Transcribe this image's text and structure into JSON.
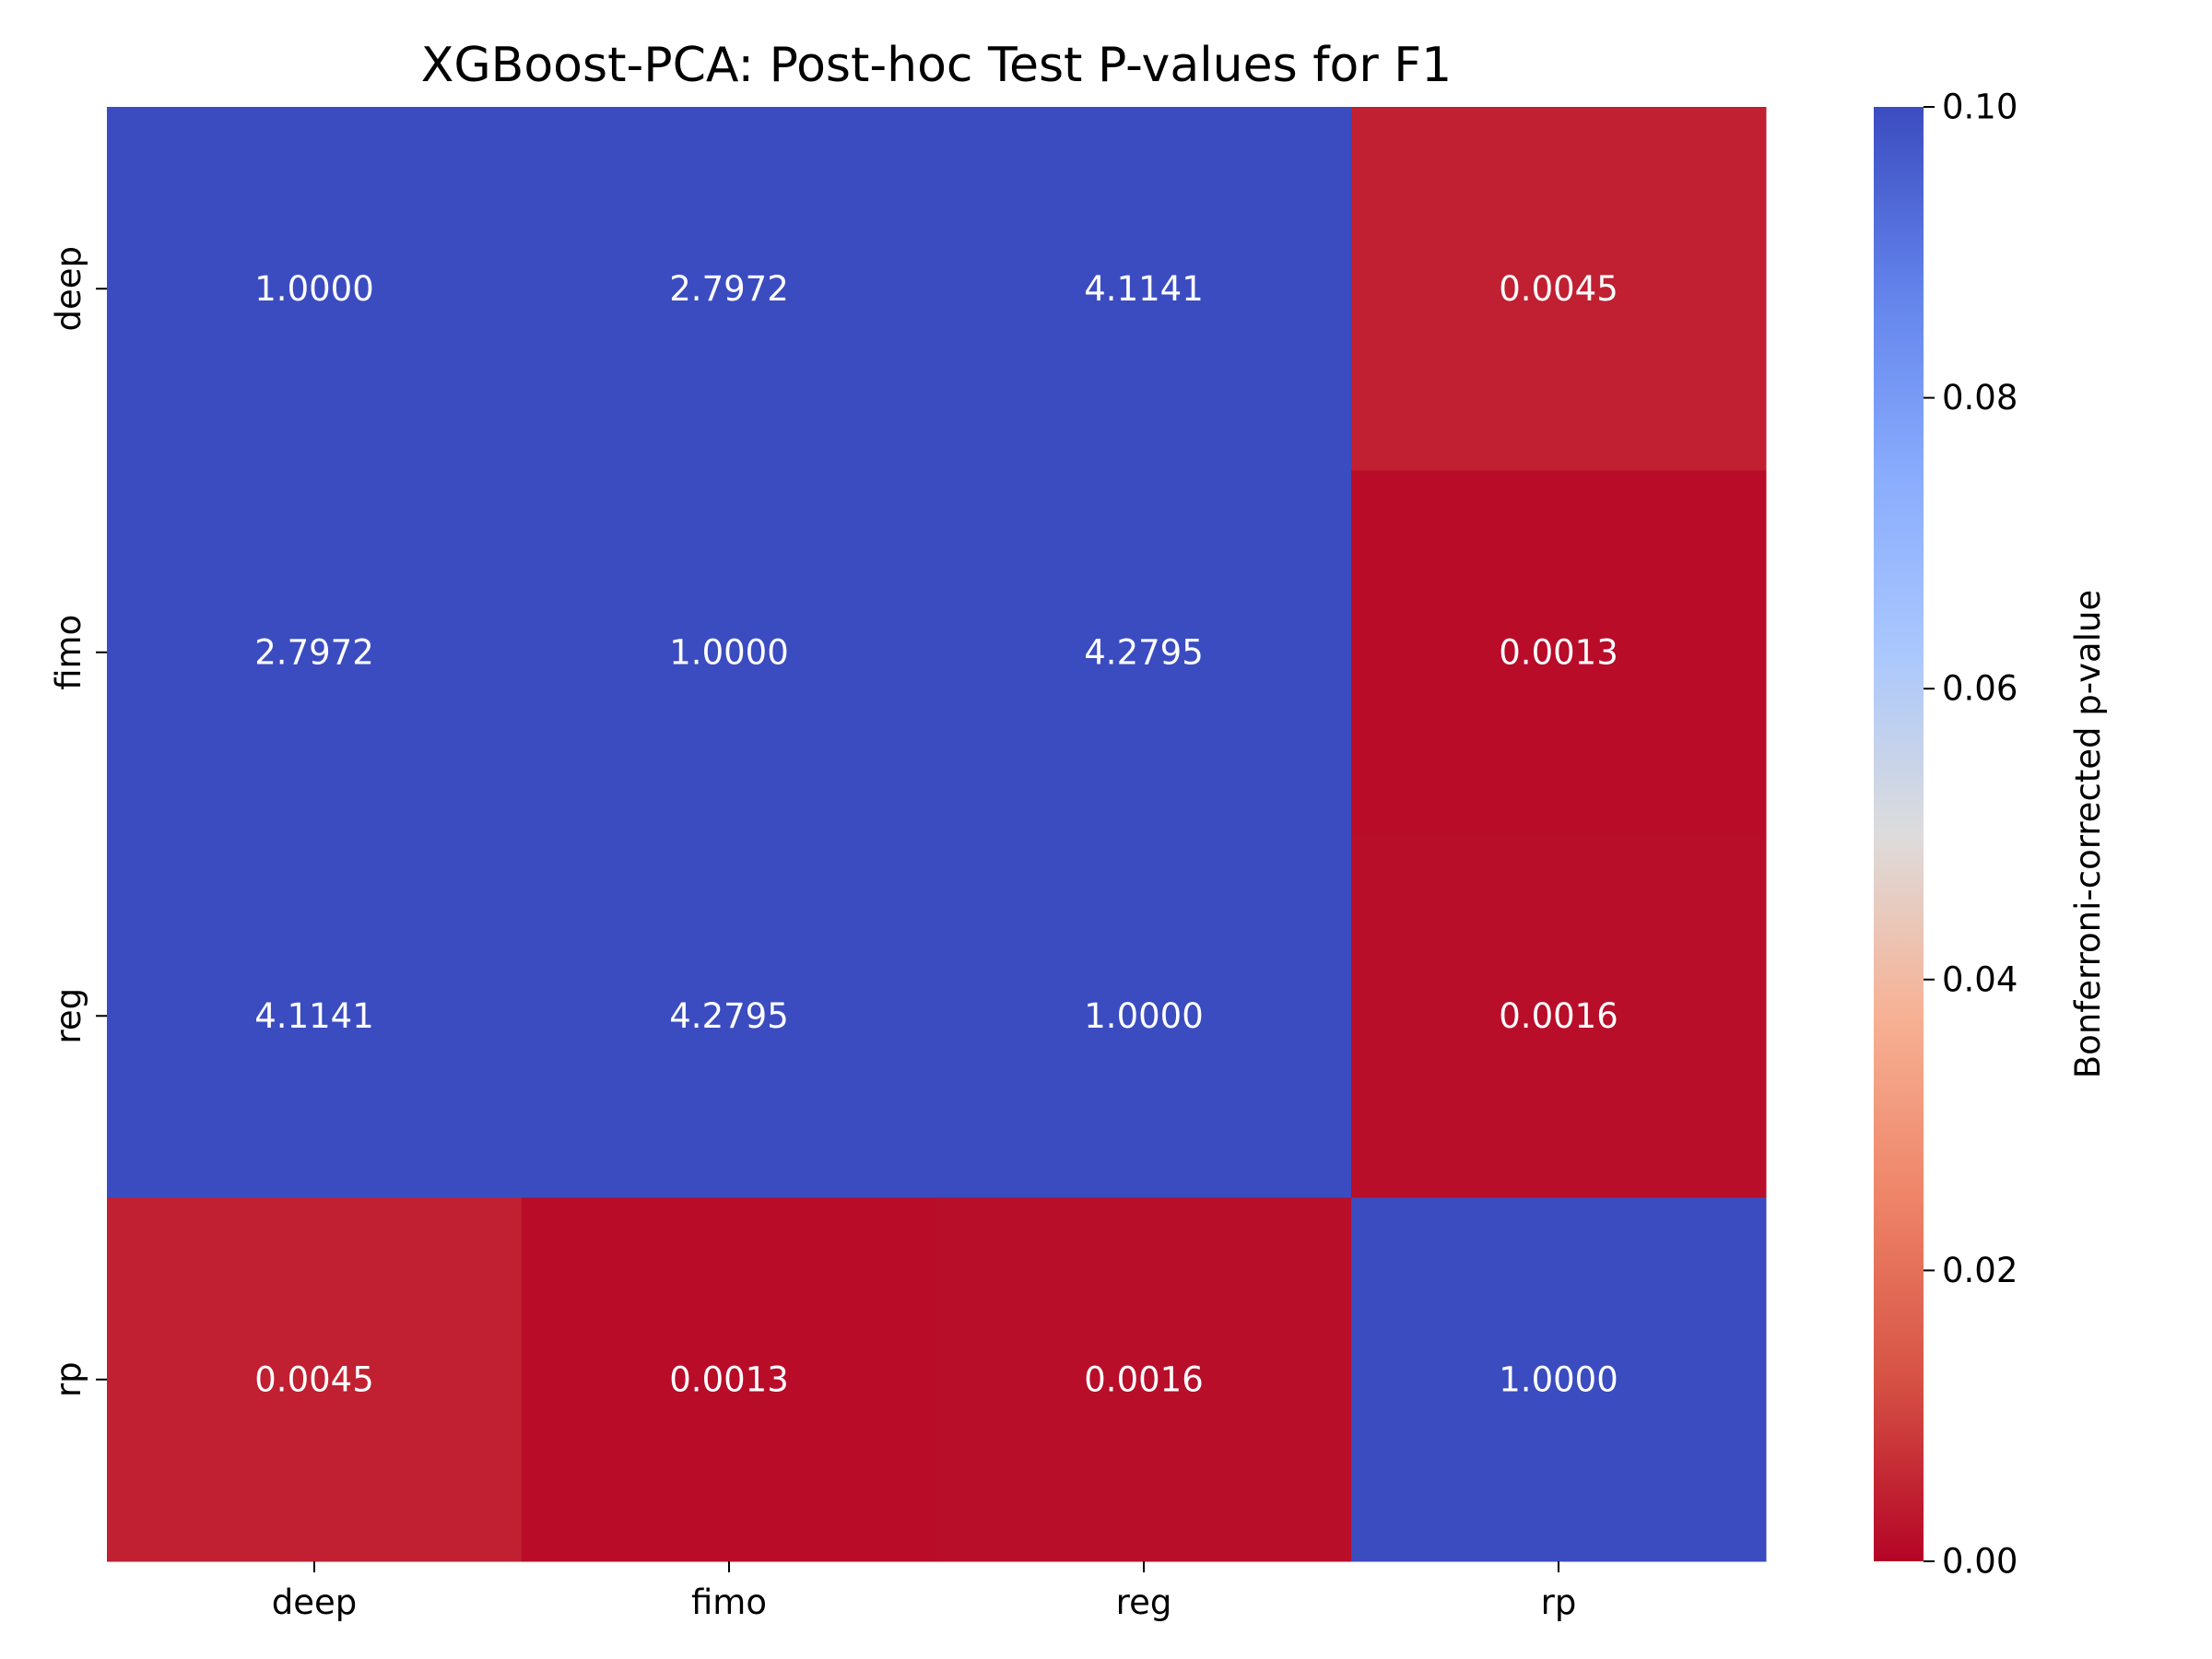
{
  "chart_data": {
    "type": "heatmap",
    "title": "XGBoost-PCA: Post-hoc Test P-values for F1",
    "xlabel": "",
    "ylabel": "",
    "x_categories": [
      "deep",
      "fimo",
      "reg",
      "rp"
    ],
    "y_categories": [
      "deep",
      "fimo",
      "reg",
      "rp"
    ],
    "values": [
      [
        1.0,
        2.7972,
        4.1141,
        0.0045
      ],
      [
        2.7972,
        1.0,
        4.2795,
        0.0013
      ],
      [
        4.1141,
        4.2795,
        1.0,
        0.0016
      ],
      [
        0.0045,
        0.0013,
        0.0016,
        1.0
      ]
    ],
    "value_labels": [
      [
        "1.0000",
        "2.7972",
        "4.1141",
        "0.0045"
      ],
      [
        "2.7972",
        "1.0000",
        "4.2795",
        "0.0013"
      ],
      [
        "4.1141",
        "4.2795",
        "1.0000",
        "0.0016"
      ],
      [
        "0.0045",
        "0.0013",
        "0.0016",
        "1.0000"
      ]
    ],
    "colormap": "coolwarm_r",
    "vmin": 0.0,
    "vmax": 0.1,
    "colorbar": {
      "label": "Bonferroni-corrected p-value",
      "ticks": [
        0.0,
        0.02,
        0.04,
        0.06,
        0.08,
        0.1
      ],
      "tick_labels": [
        "0.00",
        "0.02",
        "0.04",
        "0.06",
        "0.08",
        "0.10"
      ]
    },
    "colormap_stops": [
      {
        "t": 0.0,
        "color": "#b40426"
      },
      {
        "t": 0.125,
        "color": "#d65244"
      },
      {
        "t": 0.25,
        "color": "#ee8468"
      },
      {
        "t": 0.375,
        "color": "#f7b194"
      },
      {
        "t": 0.5,
        "color": "#dddcdc"
      },
      {
        "t": 0.625,
        "color": "#aac7fd"
      },
      {
        "t": 0.75,
        "color": "#88abfd"
      },
      {
        "t": 0.875,
        "color": "#6282ea"
      },
      {
        "t": 1.0,
        "color": "#3b4cc0"
      }
    ]
  }
}
